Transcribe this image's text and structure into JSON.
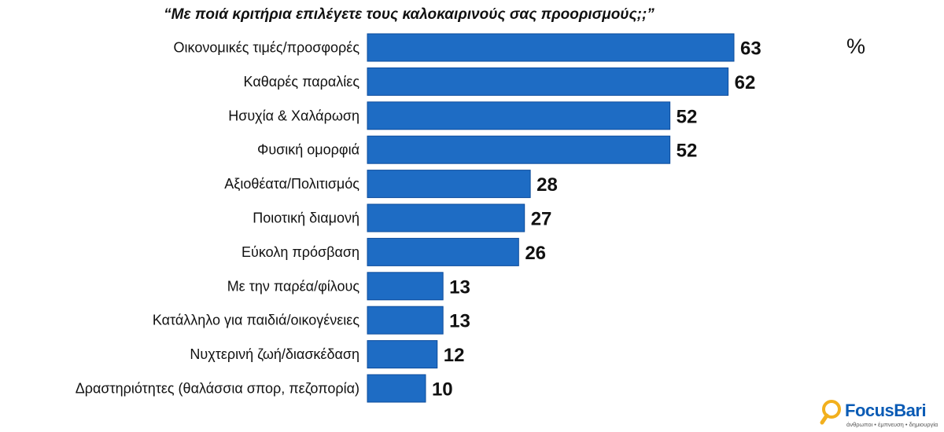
{
  "chart_data": {
    "type": "bar",
    "orientation": "horizontal",
    "title": "“Με ποιά κριτήρια επιλέγετε τους καλοκαιρινούς σας προορισμούς;;”",
    "unit": "%",
    "categories": [
      "Οικονομικές τιμές/προσφορές",
      "Καθαρές παραλίες",
      "Ησυχία & Χαλάρωση",
      "Φυσική ομορφιά",
      "Αξιοθέατα/Πολιτισμός",
      "Ποιοτική διαμονή",
      "Εύκολη πρόσβαση",
      "Με την παρέα/φίλους",
      "Κατάλληλο για παιδιά/οικογένειες",
      "Νυχτερινή ζωή/διασκέδαση",
      "Δραστηριότητες (θαλάσσια σπορ, πεζοπορία)"
    ],
    "values": [
      63,
      62,
      52,
      52,
      28,
      27,
      26,
      13,
      13,
      12,
      10
    ],
    "xlim": [
      0,
      63
    ],
    "grid": false,
    "bar_color": "#1e6cc4"
  },
  "logo": {
    "name": "FocusBari",
    "tagline": "άνθρωποι • έμπνευση • δημιουργία",
    "icon": "magnifier-icon"
  }
}
